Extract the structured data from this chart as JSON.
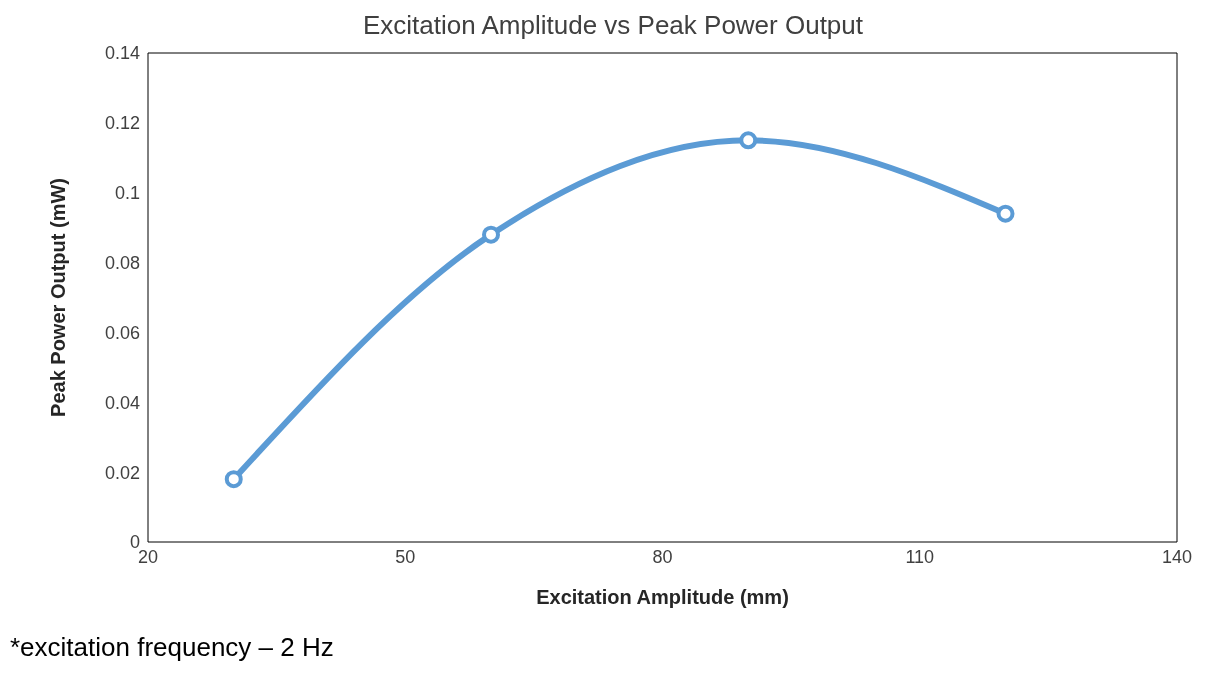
{
  "chart_data": {
    "type": "line",
    "title": "Excitation Amplitude vs Peak Power Output",
    "xlabel": "Excitation Amplitude (mm)",
    "ylabel": "Peak Power Output (mW)",
    "x": [
      30,
      60,
      90,
      120
    ],
    "series": [
      {
        "color": "#5b9bd5",
        "values": [
          0.018,
          0.088,
          0.115,
          0.094
        ]
      }
    ],
    "xlim": [
      20,
      140
    ],
    "xticks": [
      20,
      50,
      80,
      110,
      140
    ],
    "ylim": [
      0,
      0.14
    ],
    "yticks": [
      0,
      0.02,
      0.04,
      0.06,
      0.08,
      0.1,
      0.12,
      0.14
    ],
    "grid": false,
    "legend": false,
    "marker": "circle",
    "line_style": "solid",
    "annotations": [
      "*excitation frequency – 2 Hz"
    ]
  }
}
